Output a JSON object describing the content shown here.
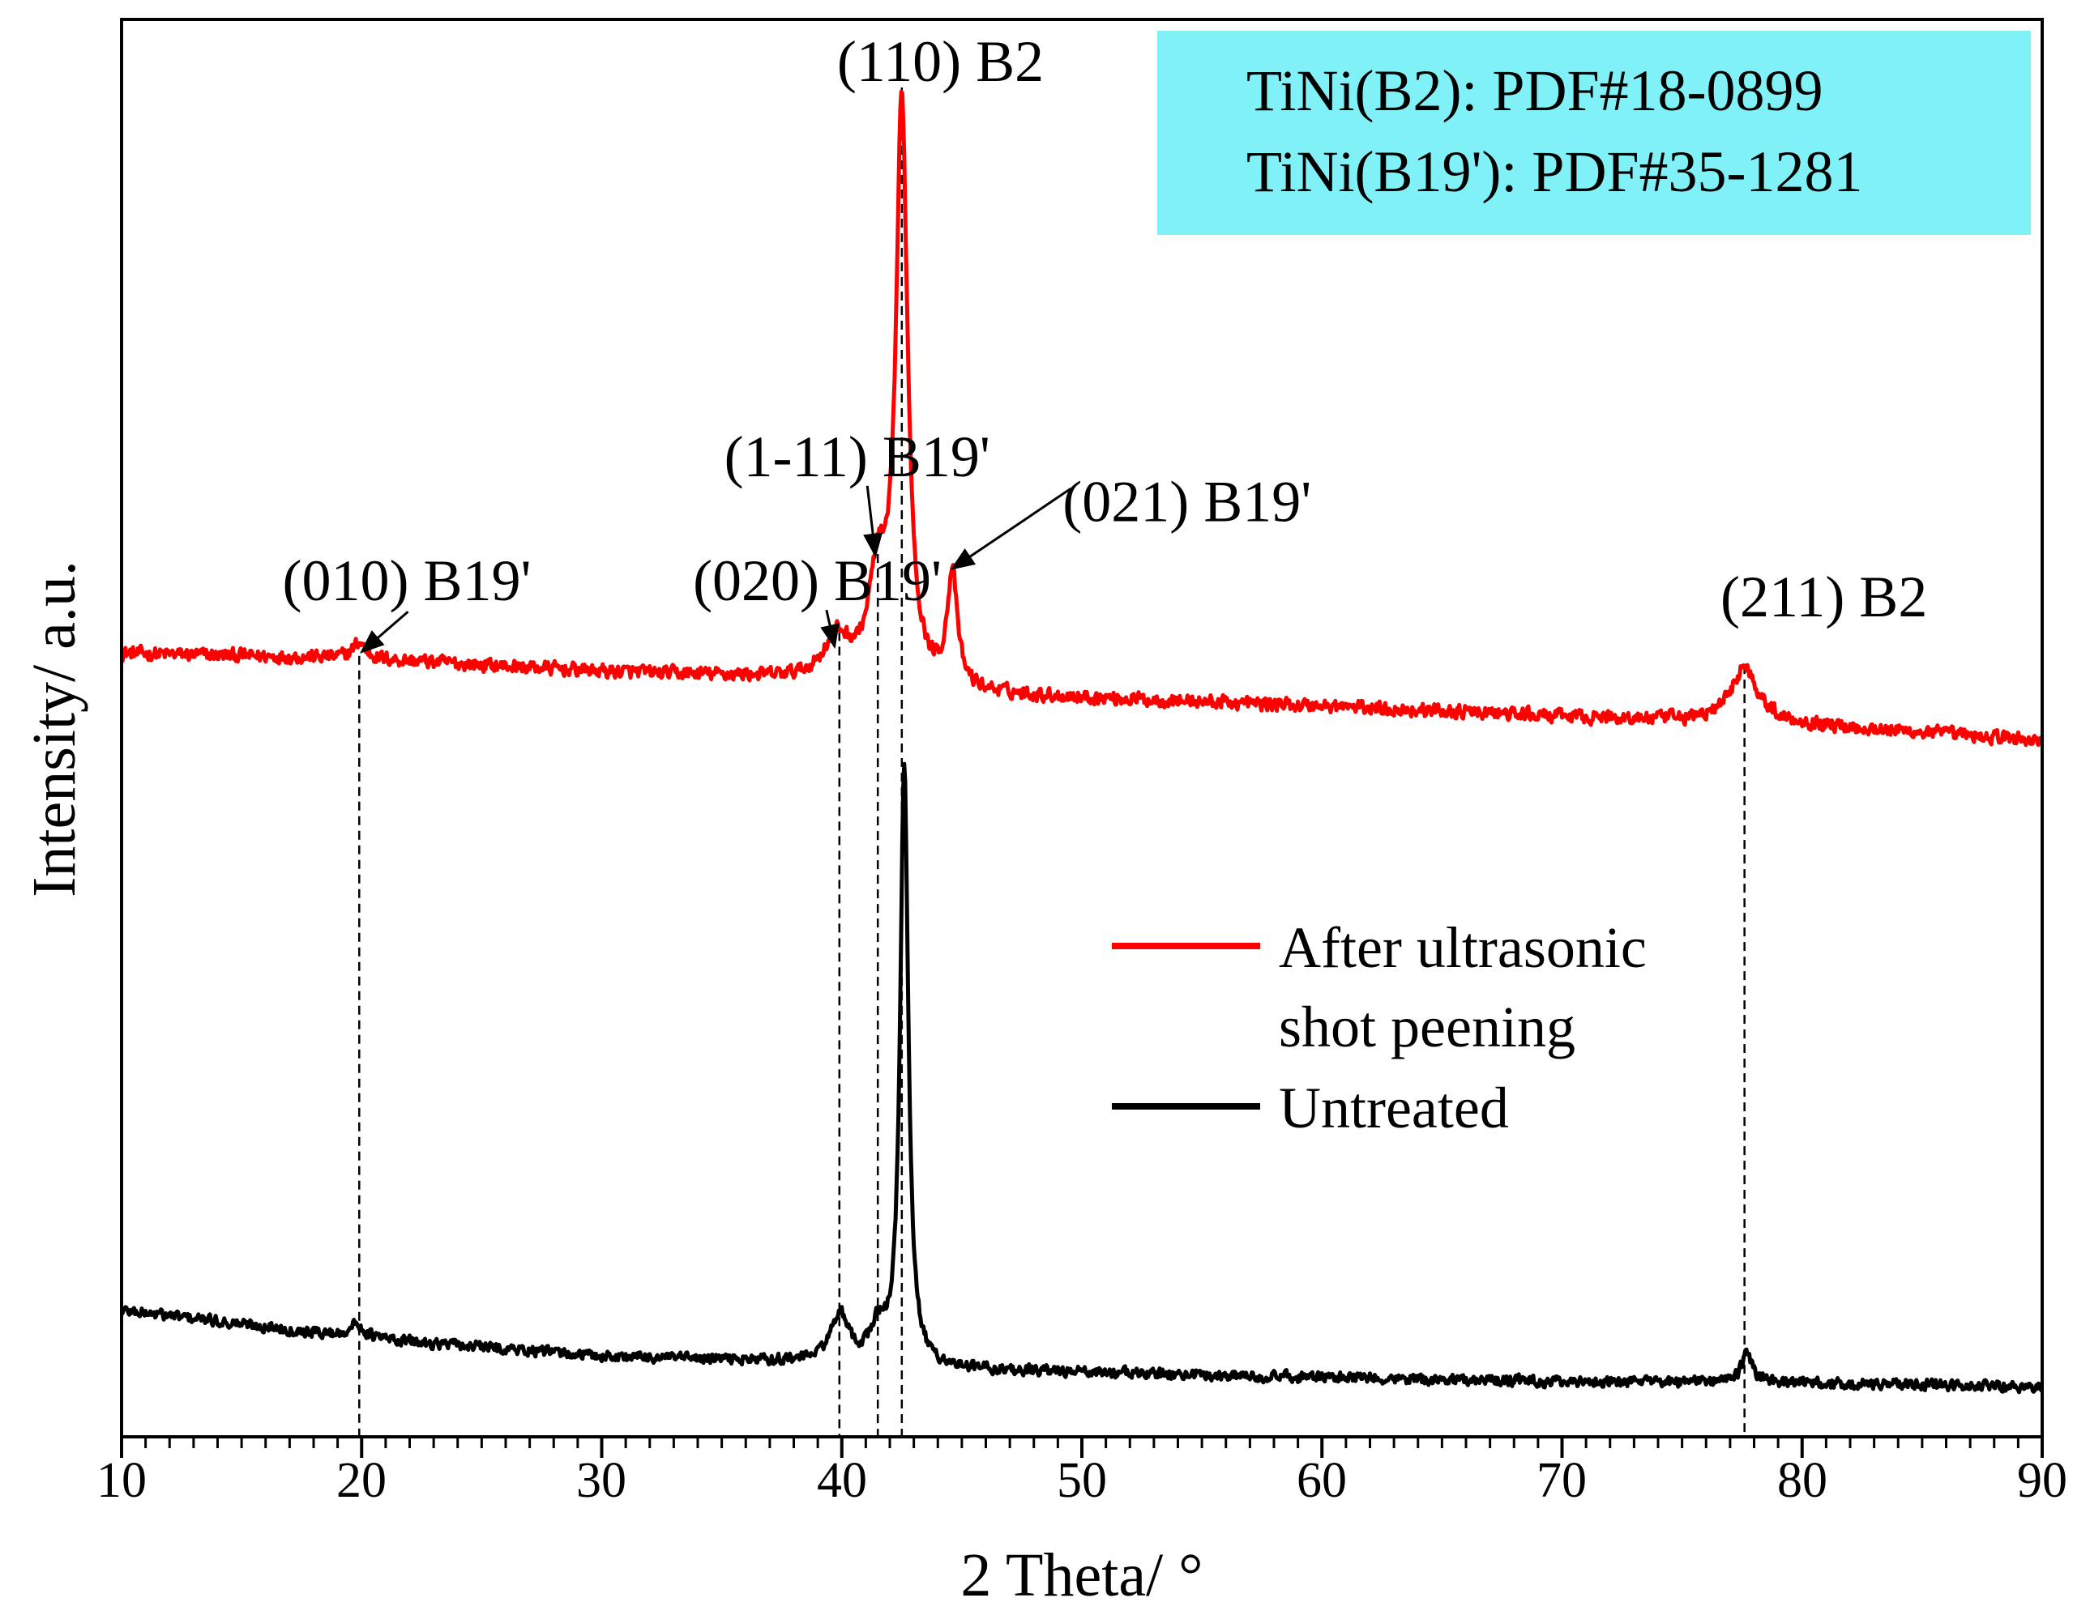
{
  "chart_data": {
    "type": "line",
    "xlabel": "2 Theta/ °",
    "ylabel": "Intensity/ a.u.",
    "xlim": [
      10,
      90
    ],
    "ylim": [
      0,
      100
    ],
    "x_ticks": [
      "10",
      "20",
      "30",
      "40",
      "50",
      "60",
      "70",
      "80",
      "90"
    ],
    "y_ticks_shown": false,
    "reference_box": {
      "color": "#80f2f7",
      "lines": [
        "TiNi(B2): PDF#18-0899",
        "TiNi(B19'): PDF#35-1281"
      ]
    },
    "legend": {
      "position": "center-right",
      "entries": [
        {
          "label_line1": "After ultrasonic",
          "label_line2": "shot peening",
          "color": "#ff0000"
        },
        {
          "label_line1": "Untreated",
          "label_line2": "",
          "color": "#000000"
        }
      ]
    },
    "series": [
      {
        "name": "After ultrasonic shot peening",
        "color": "#ff0000",
        "noise": 0.7,
        "baseline": [
          [
            10,
            57.2
          ],
          [
            20,
            56.8
          ],
          [
            30,
            55.8
          ],
          [
            36,
            55.4
          ],
          [
            45,
            54.1
          ],
          [
            60,
            53.2
          ],
          [
            70,
            52.4
          ],
          [
            80,
            51.8
          ],
          [
            90,
            50.6
          ]
        ],
        "peaks": [
          {
            "center": 19.9,
            "height": 1.2,
            "width": 0.35
          },
          {
            "center": 39.8,
            "height": 3.2,
            "width": 0.75
          },
          {
            "center": 41.5,
            "height": 7.5,
            "width": 0.5
          },
          {
            "center": 42.5,
            "height": 43.5,
            "width": 0.32
          },
          {
            "center": 44.6,
            "height": 8.5,
            "width": 0.28
          },
          {
            "center": 77.6,
            "height": 4.2,
            "width": 0.75
          }
        ]
      },
      {
        "name": "Untreated",
        "color": "#000000",
        "noise": 0.55,
        "baseline": [
          [
            10,
            7.5
          ],
          [
            20,
            5.4
          ],
          [
            30,
            4.0
          ],
          [
            38,
            3.6
          ],
          [
            45,
            3.0
          ],
          [
            60,
            2.4
          ],
          [
            70,
            2.1
          ],
          [
            80,
            2.0
          ],
          [
            90,
            1.7
          ]
        ],
        "peaks": [
          {
            "center": 19.8,
            "height": 1.0,
            "width": 0.4
          },
          {
            "center": 39.9,
            "height": 3.6,
            "width": 0.5
          },
          {
            "center": 41.5,
            "height": 2.5,
            "width": 0.4
          },
          {
            "center": 42.6,
            "height": 45.5,
            "width": 0.22
          },
          {
            "center": 77.7,
            "height": 2.2,
            "width": 0.3
          }
        ]
      }
    ],
    "reference_lines": [
      {
        "x": 19.9,
        "y_top": 57.0
      },
      {
        "x": 39.9,
        "y_top": 58.8
      },
      {
        "x": 41.5,
        "y_top": 64.7
      },
      {
        "x": 42.5,
        "y_top": 100.0
      },
      {
        "x": 77.6,
        "y_top": 56.3
      }
    ],
    "annotations": [
      {
        "text": "(010) B19'",
        "x": 20.0,
        "y": 57.3,
        "label_x": 16.7,
        "label_y": 61.2,
        "arrow": true
      },
      {
        "text": "(020) B19'",
        "x": 39.7,
        "y": 57.7,
        "label_x": 33.8,
        "label_y": 61.2,
        "arrow": true
      },
      {
        "text": "(1-11) B19'",
        "x": 41.4,
        "y": 64.6,
        "label_x": 35.1,
        "label_y": 70.6,
        "arrow": true
      },
      {
        "text": "(021) B19'",
        "x": 44.6,
        "y": 63.6,
        "label_x": 49.2,
        "label_y": 67.2,
        "arrow": true
      },
      {
        "text": "(110) B2",
        "x": 42.5,
        "y": 100.0,
        "label_x": 39.8,
        "label_y": 100.5,
        "arrow": false
      },
      {
        "text": "(211) B2",
        "x": 77.6,
        "y": 56.3,
        "label_x": 76.6,
        "label_y": 60.0,
        "arrow": false
      }
    ]
  }
}
